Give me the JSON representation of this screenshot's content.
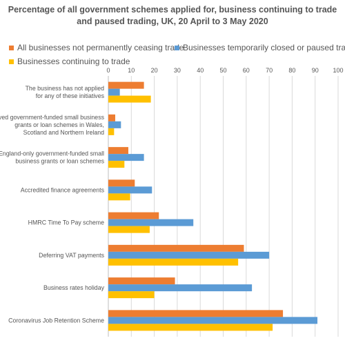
{
  "chart_data": {
    "type": "bar",
    "orientation": "horizontal",
    "title": "Percentage of all government schemes applied for, business continuing to trade and paused trading, UK, 20 April to 3 May 2020",
    "categories": [
      "The business has not applied for any of these initiatives",
      "Devolved government-funded small business grants or loan schemes in Wales, Scotland and Northern Ireland",
      "England-only government-funded small business grants or loan schemes",
      "Accredited finance agreements",
      "HMRC Time To Pay scheme",
      "Deferring VAT payments",
      "Business rates holiday",
      "Coronavirus Job Retention Scheme"
    ],
    "category_lines": [
      [
        "The business has not applied",
        "for any of these initiatives"
      ],
      [
        "Devolved government-funded small business",
        "grants or loan schemes in Wales,",
        "Scotland and Northern Ireland"
      ],
      [
        "England-only government-funded small",
        "business grants or loan schemes"
      ],
      [
        "Accredited finance agreements"
      ],
      [
        "HMRC Time To Pay scheme"
      ],
      [
        "Deferring VAT payments"
      ],
      [
        "Business rates holiday"
      ],
      [
        "Coronavirus Job Retention Scheme"
      ]
    ],
    "series": [
      {
        "name": "All businesses not permanently ceasing trade",
        "color": "#ED7D31",
        "values": [
          15.5,
          3,
          8.7,
          11.5,
          22,
          59,
          29,
          76
        ]
      },
      {
        "name": "Businesses temporarily closed or paused trading",
        "color": "#5B9BD5",
        "values": [
          5,
          5.5,
          15.5,
          19,
          37,
          70,
          62.5,
          91
        ]
      },
      {
        "name": "Businesses continuing to trade",
        "color": "#FFC000",
        "values": [
          18.5,
          2.5,
          7,
          9.5,
          18,
          56.5,
          20,
          71.5
        ]
      }
    ],
    "x_ticks": [
      "0",
      "10",
      "20",
      "30",
      "40",
      "50",
      "60",
      "70",
      "80",
      "90",
      "100"
    ],
    "xlim": [
      0,
      100
    ],
    "xlabel": "",
    "ylabel": "",
    "grid": true,
    "legend_position": "top"
  }
}
